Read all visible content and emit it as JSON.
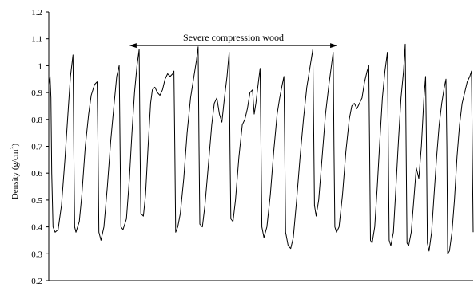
{
  "chart_data": {
    "type": "line",
    "ylabel": "Density (g/cm",
    "ylabel_superscript": "3",
    "ylabel_close": ")",
    "ylim": [
      0.2,
      1.2
    ],
    "yticks": [
      0.2,
      0.3,
      0.4,
      0.5,
      0.6,
      0.7,
      0.8,
      0.9,
      1.0,
      1.1,
      1.2
    ],
    "ytick_labels": [
      "0.2",
      "0.3",
      "0.4",
      "0.5",
      "0.6",
      "0.7",
      "0.8",
      "0.9",
      "1",
      "1.1",
      "1.2"
    ],
    "xlim": [
      0,
      100
    ],
    "grid": false,
    "legend": "none",
    "line_color": "#000000",
    "annotation": {
      "text": "Severe compression wood",
      "x_start": 19,
      "x_end": 68,
      "y": 1.075,
      "arrow": "double-headed"
    },
    "series": [
      {
        "values": [
          [
            0,
            0.93
          ],
          [
            0.3,
            0.96
          ],
          [
            0.5,
            0.88
          ],
          [
            0.7,
            0.6
          ],
          [
            1.0,
            0.4
          ],
          [
            1.5,
            0.38
          ],
          [
            2.2,
            0.39
          ],
          [
            3.0,
            0.48
          ],
          [
            3.8,
            0.65
          ],
          [
            4.6,
            0.84
          ],
          [
            5.1,
            0.96
          ],
          [
            5.7,
            1.04
          ],
          [
            5.9,
            0.7
          ],
          [
            6.1,
            0.4
          ],
          [
            6.4,
            0.38
          ],
          [
            7.2,
            0.42
          ],
          [
            7.8,
            0.52
          ],
          [
            8.6,
            0.7
          ],
          [
            9.4,
            0.82
          ],
          [
            10.0,
            0.89
          ],
          [
            10.8,
            0.93
          ],
          [
            11.4,
            0.94
          ],
          [
            11.6,
            0.7
          ],
          [
            11.8,
            0.38
          ],
          [
            12.3,
            0.35
          ],
          [
            13.0,
            0.4
          ],
          [
            13.8,
            0.55
          ],
          [
            14.6,
            0.72
          ],
          [
            15.4,
            0.86
          ],
          [
            16.0,
            0.96
          ],
          [
            16.6,
            1.0
          ],
          [
            16.8,
            0.7
          ],
          [
            17.0,
            0.4
          ],
          [
            17.5,
            0.39
          ],
          [
            18.3,
            0.43
          ],
          [
            19.0,
            0.58
          ],
          [
            19.6,
            0.75
          ],
          [
            20.2,
            0.9
          ],
          [
            20.8,
            1.0
          ],
          [
            21.3,
            1.06
          ],
          [
            21.5,
            0.7
          ],
          [
            21.7,
            0.45
          ],
          [
            22.3,
            0.44
          ],
          [
            22.8,
            0.52
          ],
          [
            23.4,
            0.7
          ],
          [
            24.0,
            0.86
          ],
          [
            24.4,
            0.91
          ],
          [
            25.0,
            0.92
          ],
          [
            25.6,
            0.9
          ],
          [
            26.2,
            0.89
          ],
          [
            26.8,
            0.91
          ],
          [
            27.4,
            0.95
          ],
          [
            28.0,
            0.97
          ],
          [
            28.6,
            0.96
          ],
          [
            29.2,
            0.97
          ],
          [
            29.5,
            0.98
          ],
          [
            29.7,
            0.7
          ],
          [
            29.9,
            0.38
          ],
          [
            30.4,
            0.4
          ],
          [
            31.0,
            0.45
          ],
          [
            31.8,
            0.58
          ],
          [
            32.6,
            0.75
          ],
          [
            33.4,
            0.88
          ],
          [
            34.2,
            0.96
          ],
          [
            34.8,
            1.02
          ],
          [
            35.2,
            1.07
          ],
          [
            35.4,
            0.7
          ],
          [
            35.6,
            0.41
          ],
          [
            36.2,
            0.4
          ],
          [
            36.8,
            0.48
          ],
          [
            37.6,
            0.63
          ],
          [
            38.4,
            0.78
          ],
          [
            39.0,
            0.86
          ],
          [
            39.6,
            0.88
          ],
          [
            40.2,
            0.82
          ],
          [
            40.8,
            0.79
          ],
          [
            41.4,
            0.88
          ],
          [
            42.0,
            0.96
          ],
          [
            42.5,
            1.05
          ],
          [
            42.7,
            0.7
          ],
          [
            42.9,
            0.43
          ],
          [
            43.4,
            0.42
          ],
          [
            44.0,
            0.5
          ],
          [
            44.8,
            0.66
          ],
          [
            45.6,
            0.78
          ],
          [
            46.2,
            0.8
          ],
          [
            46.8,
            0.84
          ],
          [
            47.4,
            0.9
          ],
          [
            48.0,
            0.91
          ],
          [
            48.4,
            0.82
          ],
          [
            48.8,
            0.86
          ],
          [
            49.4,
            0.94
          ],
          [
            49.8,
            0.99
          ],
          [
            50.0,
            0.7
          ],
          [
            50.2,
            0.4
          ],
          [
            50.7,
            0.36
          ],
          [
            51.4,
            0.4
          ],
          [
            52.2,
            0.52
          ],
          [
            53.0,
            0.68
          ],
          [
            53.8,
            0.82
          ],
          [
            54.4,
            0.88
          ],
          [
            55.0,
            0.93
          ],
          [
            55.4,
            0.96
          ],
          [
            55.6,
            0.7
          ],
          [
            55.8,
            0.38
          ],
          [
            56.4,
            0.33
          ],
          [
            57.0,
            0.32
          ],
          [
            57.6,
            0.36
          ],
          [
            58.4,
            0.5
          ],
          [
            59.2,
            0.66
          ],
          [
            60.0,
            0.8
          ],
          [
            60.8,
            0.92
          ],
          [
            61.6,
            1.0
          ],
          [
            62.2,
            1.06
          ],
          [
            62.4,
            0.8
          ],
          [
            62.6,
            0.48
          ],
          [
            63.0,
            0.44
          ],
          [
            63.6,
            0.5
          ],
          [
            64.4,
            0.66
          ],
          [
            65.2,
            0.82
          ],
          [
            66.0,
            0.93
          ],
          [
            66.6,
            1.0
          ],
          [
            67.0,
            1.05
          ],
          [
            67.2,
            0.7
          ],
          [
            67.4,
            0.4
          ],
          [
            67.8,
            0.38
          ],
          [
            68.4,
            0.4
          ],
          [
            69.2,
            0.52
          ],
          [
            70.0,
            0.68
          ],
          [
            70.8,
            0.8
          ],
          [
            71.4,
            0.85
          ],
          [
            72.0,
            0.86
          ],
          [
            72.6,
            0.84
          ],
          [
            73.2,
            0.86
          ],
          [
            73.8,
            0.88
          ],
          [
            74.4,
            0.94
          ],
          [
            75.0,
            0.98
          ],
          [
            75.4,
            1.0
          ],
          [
            75.6,
            0.7
          ],
          [
            75.8,
            0.35
          ],
          [
            76.2,
            0.34
          ],
          [
            76.8,
            0.4
          ],
          [
            77.4,
            0.55
          ],
          [
            78.0,
            0.72
          ],
          [
            78.6,
            0.88
          ],
          [
            79.2,
            0.98
          ],
          [
            79.8,
            1.05
          ],
          [
            80.0,
            0.7
          ],
          [
            80.2,
            0.35
          ],
          [
            80.6,
            0.33
          ],
          [
            81.2,
            0.38
          ],
          [
            81.8,
            0.55
          ],
          [
            82.4,
            0.72
          ],
          [
            83.0,
            0.88
          ],
          [
            83.6,
            0.98
          ],
          [
            84.0,
            1.08
          ],
          [
            84.2,
            0.7
          ],
          [
            84.4,
            0.34
          ],
          [
            84.8,
            0.33
          ],
          [
            85.4,
            0.38
          ],
          [
            86.0,
            0.5
          ],
          [
            86.6,
            0.62
          ],
          [
            87.2,
            0.58
          ],
          [
            87.8,
            0.7
          ],
          [
            88.4,
            0.88
          ],
          [
            88.8,
            0.96
          ],
          [
            89.0,
            0.7
          ],
          [
            89.2,
            0.34
          ],
          [
            89.6,
            0.31
          ],
          [
            90.2,
            0.38
          ],
          [
            90.8,
            0.52
          ],
          [
            91.4,
            0.66
          ],
          [
            92.0,
            0.78
          ],
          [
            92.6,
            0.86
          ],
          [
            93.2,
            0.92
          ],
          [
            93.6,
            0.95
          ],
          [
            93.8,
            0.7
          ],
          [
            94.0,
            0.3
          ],
          [
            94.4,
            0.31
          ],
          [
            95.0,
            0.38
          ],
          [
            95.6,
            0.5
          ],
          [
            96.2,
            0.66
          ],
          [
            96.8,
            0.78
          ],
          [
            97.4,
            0.86
          ],
          [
            98.0,
            0.9
          ],
          [
            98.6,
            0.94
          ],
          [
            99.2,
            0.96
          ],
          [
            99.6,
            0.98
          ],
          [
            100.0,
            0.38
          ]
        ]
      }
    ]
  }
}
